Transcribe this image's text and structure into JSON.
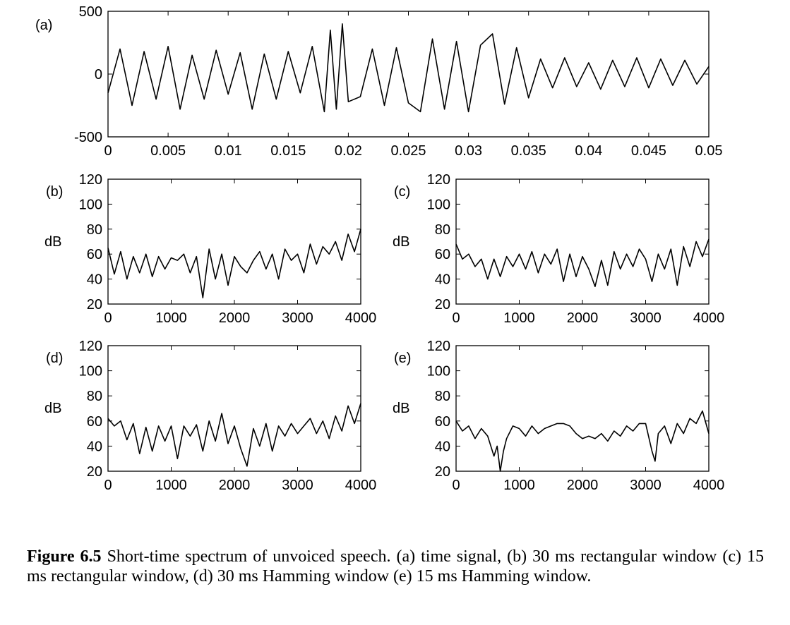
{
  "chart_data": [
    {
      "id": "a",
      "panel_label": "(a)",
      "type": "line",
      "xlim": [
        0,
        0.05
      ],
      "ylim": [
        -500,
        500
      ],
      "xticks": [
        "0",
        "0.005",
        "0.01",
        "0.015",
        "0.02",
        "0.025",
        "0.03",
        "0.035",
        "0.04",
        "0.045",
        "0.05"
      ],
      "yticks": [
        "500",
        "0",
        "-500"
      ],
      "ylabel": "",
      "x": [
        0,
        0.001,
        0.002,
        0.003,
        0.004,
        0.005,
        0.006,
        0.007,
        0.008,
        0.009,
        0.01,
        0.011,
        0.012,
        0.013,
        0.014,
        0.015,
        0.016,
        0.017,
        0.018,
        0.0185,
        0.019,
        0.0195,
        0.02,
        0.021,
        0.022,
        0.023,
        0.024,
        0.025,
        0.026,
        0.027,
        0.028,
        0.029,
        0.03,
        0.031,
        0.032,
        0.033,
        0.034,
        0.035,
        0.036,
        0.037,
        0.038,
        0.039,
        0.04,
        0.041,
        0.042,
        0.043,
        0.044,
        0.045,
        0.046,
        0.047,
        0.048,
        0.049,
        0.05
      ],
      "y": [
        -150,
        200,
        -250,
        180,
        -200,
        220,
        -280,
        150,
        -200,
        190,
        -160,
        170,
        -280,
        160,
        -200,
        180,
        -150,
        220,
        -300,
        350,
        -280,
        400,
        -220,
        -180,
        200,
        -250,
        210,
        -230,
        -300,
        280,
        -280,
        260,
        -300,
        230,
        320,
        -240,
        210,
        -190,
        120,
        -110,
        130,
        -100,
        90,
        -120,
        110,
        -100,
        130,
        -110,
        120,
        -90,
        110,
        -80,
        60
      ]
    },
    {
      "id": "b",
      "panel_label": "(b)",
      "type": "line",
      "xlim": [
        0,
        4000
      ],
      "ylim": [
        20,
        120
      ],
      "xticks": [
        "0",
        "1000",
        "2000",
        "3000",
        "4000"
      ],
      "yticks": [
        "120",
        "100",
        "80",
        "60",
        "40",
        "20"
      ],
      "ylabel": "dB",
      "x": [
        0,
        100,
        200,
        300,
        400,
        500,
        600,
        700,
        800,
        900,
        1000,
        1100,
        1200,
        1300,
        1400,
        1500,
        1600,
        1700,
        1800,
        1900,
        2000,
        2100,
        2200,
        2300,
        2400,
        2500,
        2600,
        2700,
        2800,
        2900,
        3000,
        3100,
        3200,
        3300,
        3400,
        3500,
        3600,
        3700,
        3800,
        3900,
        4000
      ],
      "y": [
        65,
        44,
        62,
        40,
        58,
        45,
        60,
        42,
        58,
        48,
        57,
        55,
        60,
        45,
        58,
        25,
        64,
        40,
        60,
        35,
        58,
        50,
        45,
        55,
        62,
        48,
        60,
        40,
        64,
        55,
        60,
        45,
        68,
        52,
        66,
        60,
        70,
        55,
        76,
        62,
        80
      ]
    },
    {
      "id": "c",
      "panel_label": "(c)",
      "type": "line",
      "xlim": [
        0,
        4000
      ],
      "ylim": [
        20,
        120
      ],
      "xticks": [
        "0",
        "1000",
        "2000",
        "3000",
        "4000"
      ],
      "yticks": [
        "120",
        "100",
        "80",
        "60",
        "40",
        "20"
      ],
      "ylabel": "dB",
      "x": [
        0,
        100,
        200,
        300,
        400,
        500,
        600,
        700,
        800,
        900,
        1000,
        1100,
        1200,
        1300,
        1400,
        1500,
        1600,
        1700,
        1800,
        1900,
        2000,
        2100,
        2200,
        2300,
        2400,
        2500,
        2600,
        2700,
        2800,
        2900,
        3000,
        3100,
        3200,
        3300,
        3400,
        3500,
        3600,
        3700,
        3800,
        3900,
        4000
      ],
      "y": [
        68,
        56,
        60,
        50,
        56,
        40,
        56,
        42,
        58,
        50,
        60,
        48,
        62,
        45,
        60,
        52,
        64,
        38,
        60,
        42,
        58,
        48,
        34,
        55,
        35,
        62,
        48,
        60,
        50,
        64,
        56,
        38,
        60,
        48,
        64,
        35,
        66,
        50,
        70,
        58,
        72
      ]
    },
    {
      "id": "d",
      "panel_label": "(d)",
      "type": "line",
      "xlim": [
        0,
        4000
      ],
      "ylim": [
        20,
        120
      ],
      "xticks": [
        "0",
        "1000",
        "2000",
        "3000",
        "4000"
      ],
      "yticks": [
        "120",
        "100",
        "80",
        "60",
        "40",
        "20"
      ],
      "ylabel": "dB",
      "x": [
        0,
        100,
        200,
        300,
        400,
        500,
        600,
        700,
        800,
        900,
        1000,
        1100,
        1200,
        1300,
        1400,
        1500,
        1600,
        1700,
        1800,
        1900,
        2000,
        2100,
        2200,
        2300,
        2400,
        2500,
        2600,
        2700,
        2800,
        2900,
        3000,
        3100,
        3200,
        3300,
        3400,
        3500,
        3600,
        3700,
        3800,
        3900,
        4000
      ],
      "y": [
        62,
        56,
        60,
        45,
        58,
        34,
        55,
        36,
        56,
        44,
        56,
        30,
        56,
        48,
        57,
        36,
        60,
        44,
        66,
        42,
        56,
        38,
        24,
        54,
        40,
        58,
        36,
        56,
        48,
        58,
        50,
        56,
        62,
        50,
        60,
        46,
        64,
        52,
        72,
        58,
        74
      ]
    },
    {
      "id": "e",
      "panel_label": "(e)",
      "type": "line",
      "xlim": [
        0,
        4000
      ],
      "ylim": [
        20,
        120
      ],
      "xticks": [
        "0",
        "1000",
        "2000",
        "3000",
        "4000"
      ],
      "yticks": [
        "120",
        "100",
        "80",
        "60",
        "40",
        "20"
      ],
      "ylabel": "dB",
      "x": [
        0,
        100,
        200,
        300,
        400,
        500,
        600,
        650,
        700,
        750,
        800,
        900,
        1000,
        1100,
        1200,
        1300,
        1400,
        1500,
        1600,
        1700,
        1800,
        1900,
        2000,
        2100,
        2200,
        2300,
        2400,
        2500,
        2600,
        2700,
        2800,
        2900,
        3000,
        3100,
        3150,
        3200,
        3300,
        3400,
        3500,
        3600,
        3700,
        3800,
        3900,
        4000
      ],
      "y": [
        60,
        52,
        56,
        46,
        54,
        48,
        32,
        40,
        20,
        36,
        46,
        56,
        54,
        48,
        56,
        50,
        54,
        56,
        58,
        58,
        56,
        50,
        46,
        48,
        46,
        50,
        44,
        52,
        48,
        56,
        52,
        58,
        58,
        36,
        28,
        50,
        56,
        42,
        58,
        50,
        62,
        58,
        68,
        50
      ]
    }
  ],
  "caption": {
    "bold": "Figure 6.5",
    "text": " Short-time spectrum of unvoiced speech. (a) time signal, (b) 30 ms rectangular window (c) 15 ms rectangular window, (d) 30 ms Hamming window (e) 15 ms Hamming window."
  }
}
